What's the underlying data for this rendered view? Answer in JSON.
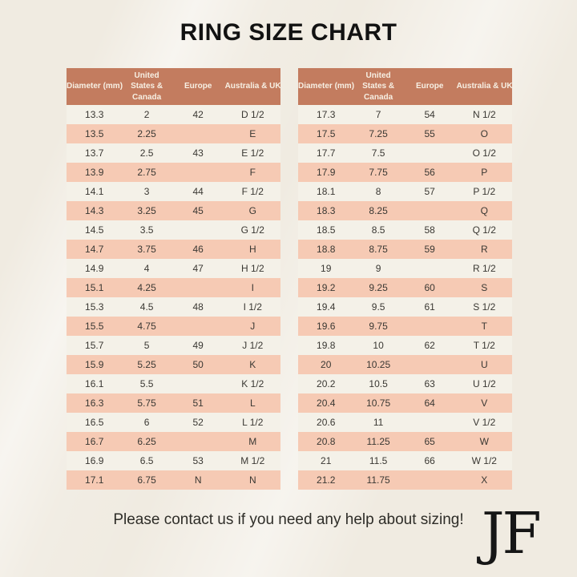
{
  "title": "RING SIZE CHART",
  "colors": {
    "page_bg": "#f0ebe1",
    "header_bg": "#c37c5f",
    "header_text": "#f7f0e4",
    "row_pink": "#f6cab4",
    "row_cream": "#f4f1e8",
    "body_text": "#3a3833",
    "title_text": "#121212"
  },
  "tables": [
    {
      "headers": [
        "Diameter (mm)",
        "United States & Canada",
        "Europe",
        "Australia & UK"
      ],
      "rows": [
        [
          "13.3",
          "2",
          "42",
          "D 1/2"
        ],
        [
          "13.5",
          "2.25",
          "",
          "E"
        ],
        [
          "13.7",
          "2.5",
          "43",
          "E 1/2"
        ],
        [
          "13.9",
          "2.75",
          "",
          "F"
        ],
        [
          "14.1",
          "3",
          "44",
          "F 1/2"
        ],
        [
          "14.3",
          "3.25",
          "45",
          "G"
        ],
        [
          "14.5",
          "3.5",
          "",
          "G 1/2"
        ],
        [
          "14.7",
          "3.75",
          "46",
          "H"
        ],
        [
          "14.9",
          "4",
          "47",
          "H 1/2"
        ],
        [
          "15.1",
          "4.25",
          "",
          "I"
        ],
        [
          "15.3",
          "4.5",
          "48",
          "I 1/2"
        ],
        [
          "15.5",
          "4.75",
          "",
          "J"
        ],
        [
          "15.7",
          "5",
          "49",
          "J 1/2"
        ],
        [
          "15.9",
          "5.25",
          "50",
          "K"
        ],
        [
          "16.1",
          "5.5",
          "",
          "K 1/2"
        ],
        [
          "16.3",
          "5.75",
          "51",
          "L"
        ],
        [
          "16.5",
          "6",
          "52",
          "L 1/2"
        ],
        [
          "16.7",
          "6.25",
          "",
          "M"
        ],
        [
          "16.9",
          "6.5",
          "53",
          "M 1/2"
        ],
        [
          "17.1",
          "6.75",
          "N",
          "N"
        ]
      ]
    },
    {
      "headers": [
        "Diameter (mm)",
        "United States & Canada",
        "Europe",
        "Australia & UK"
      ],
      "rows": [
        [
          "17.3",
          "7",
          "54",
          "N 1/2"
        ],
        [
          "17.5",
          "7.25",
          "55",
          "O"
        ],
        [
          "17.7",
          "7.5",
          "",
          "O 1/2"
        ],
        [
          "17.9",
          "7.75",
          "56",
          "P"
        ],
        [
          "18.1",
          "8",
          "57",
          "P 1/2"
        ],
        [
          "18.3",
          "8.25",
          "",
          "Q"
        ],
        [
          "18.5",
          "8.5",
          "58",
          "Q 1/2"
        ],
        [
          "18.8",
          "8.75",
          "59",
          "R"
        ],
        [
          "19",
          "9",
          "",
          "R 1/2"
        ],
        [
          "19.2",
          "9.25",
          "60",
          "S"
        ],
        [
          "19.4",
          "9.5",
          "61",
          "S 1/2"
        ],
        [
          "19.6",
          "9.75",
          "",
          "T"
        ],
        [
          "19.8",
          "10",
          "62",
          "T 1/2"
        ],
        [
          "20",
          "10.25",
          "",
          "U"
        ],
        [
          "20.2",
          "10.5",
          "63",
          "U 1/2"
        ],
        [
          "20.4",
          "10.75",
          "64",
          "V"
        ],
        [
          "20.6",
          "11",
          "",
          "V 1/2"
        ],
        [
          "20.8",
          "11.25",
          "65",
          "W"
        ],
        [
          "21",
          "11.5",
          "66",
          "W 1/2"
        ],
        [
          "21.2",
          "11.75",
          "",
          "X"
        ]
      ]
    }
  ],
  "footer": {
    "note": "Please contact us if you need any help about sizing!",
    "logo": "JF"
  }
}
